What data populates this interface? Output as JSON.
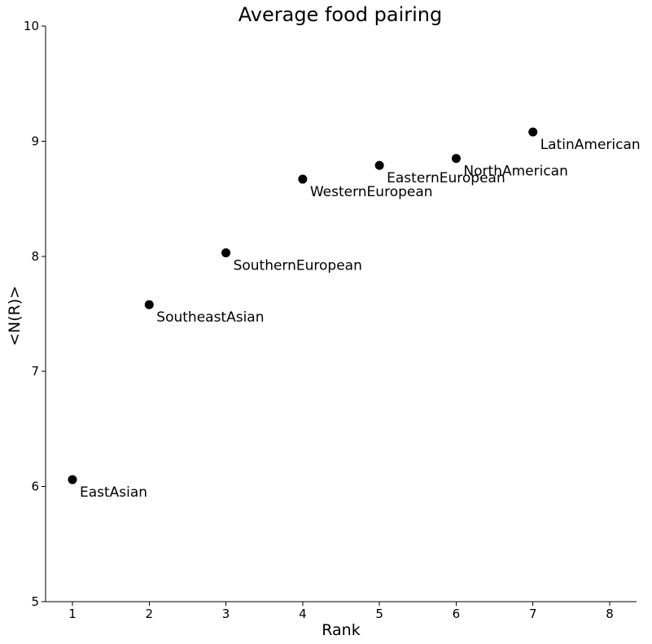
{
  "chart_data": {
    "type": "scatter",
    "title": "Average food pairing",
    "xlabel": "Rank",
    "ylabel": "<N(R)>",
    "xlim": [
      0.65,
      8.35
    ],
    "ylim": [
      5,
      10
    ],
    "xticks": [
      "1",
      "2",
      "3",
      "4",
      "5",
      "6",
      "7",
      "8"
    ],
    "yticks": [
      "5",
      "6",
      "7",
      "8",
      "9",
      "10"
    ],
    "grid": false,
    "points": [
      {
        "x": 1,
        "y": 6.06,
        "label": "EastAsian"
      },
      {
        "x": 2,
        "y": 7.58,
        "label": "SoutheastAsian"
      },
      {
        "x": 3,
        "y": 8.03,
        "label": "SouthernEuropean"
      },
      {
        "x": 4,
        "y": 8.67,
        "label": "WesternEuropean"
      },
      {
        "x": 5,
        "y": 8.79,
        "label": "EasternEuropean"
      },
      {
        "x": 6,
        "y": 8.85,
        "label": "NorthAmerican"
      },
      {
        "x": 7,
        "y": 9.08,
        "label": "LatinAmerican"
      }
    ],
    "point_color": "#000000"
  }
}
